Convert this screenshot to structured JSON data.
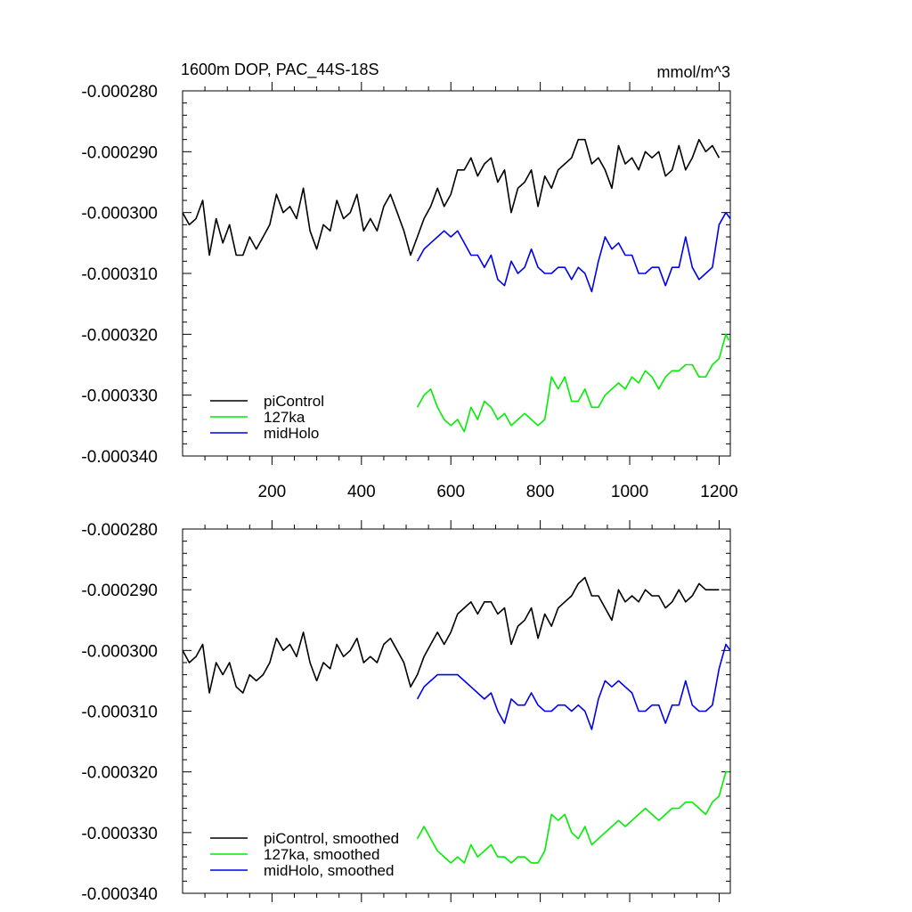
{
  "figure": {
    "title": "1600m DOP, PAC_44S-18S",
    "units": "mmol/m^3"
  },
  "chart_data": [
    {
      "type": "line",
      "panel": "top",
      "xlim": [
        0,
        1225
      ],
      "ylim": [
        -0.00034,
        -0.00028
      ],
      "x_ticks": [
        200,
        400,
        600,
        800,
        1000,
        1200
      ],
      "x_tick_labels": [
        "200",
        "400",
        "600",
        "800",
        "1000",
        "1200"
      ],
      "y_ticks": [
        -0.00028,
        -0.00029,
        -0.0003,
        -0.00031,
        -0.00032,
        -0.00033,
        -0.00034
      ],
      "y_tick_labels": [
        "-0.000280",
        "-0.000290",
        "-0.000300",
        "-0.000310",
        "-0.000320",
        "-0.000330",
        "-0.000340"
      ],
      "legend_position": "bottom-left",
      "series": [
        {
          "name": "piControl",
          "color": "#000000",
          "x": [
            0,
            15,
            30,
            45,
            60,
            75,
            90,
            105,
            120,
            135,
            150,
            165,
            180,
            195,
            210,
            225,
            240,
            255,
            270,
            285,
            300,
            315,
            330,
            345,
            360,
            375,
            390,
            405,
            420,
            435,
            450,
            465,
            480,
            495,
            510,
            525,
            540,
            555,
            570,
            585,
            600,
            615,
            630,
            645,
            660,
            675,
            690,
            705,
            720,
            735,
            750,
            765,
            780,
            795,
            810,
            825,
            840,
            855,
            870,
            885,
            900,
            915,
            930,
            945,
            960,
            975,
            990,
            1005,
            1020,
            1035,
            1050,
            1065,
            1080,
            1095,
            1110,
            1125,
            1140,
            1155,
            1170,
            1185,
            1200
          ],
          "y": [
            -0.0003,
            -0.000302,
            -0.000301,
            -0.000298,
            -0.000307,
            -0.000301,
            -0.000305,
            -0.000302,
            -0.000307,
            -0.000307,
            -0.000304,
            -0.000306,
            -0.000304,
            -0.000302,
            -0.000297,
            -0.0003,
            -0.000299,
            -0.000301,
            -0.000296,
            -0.000303,
            -0.000306,
            -0.000302,
            -0.000303,
            -0.000298,
            -0.000301,
            -0.0003,
            -0.000297,
            -0.000303,
            -0.000301,
            -0.000303,
            -0.000299,
            -0.000297,
            -0.0003,
            -0.000303,
            -0.000307,
            -0.000304,
            -0.000301,
            -0.000299,
            -0.000296,
            -0.000299,
            -0.000297,
            -0.000293,
            -0.000293,
            -0.000291,
            -0.000294,
            -0.000292,
            -0.000291,
            -0.000295,
            -0.000293,
            -0.0003,
            -0.000296,
            -0.000295,
            -0.000293,
            -0.000299,
            -0.000294,
            -0.000296,
            -0.000293,
            -0.000292,
            -0.000291,
            -0.000288,
            -0.000288,
            -0.000292,
            -0.000291,
            -0.000293,
            -0.000296,
            -0.000289,
            -0.000292,
            -0.000291,
            -0.000293,
            -0.00029,
            -0.000291,
            -0.00029,
            -0.000294,
            -0.000293,
            -0.000289,
            -0.000293,
            -0.000291,
            -0.000288,
            -0.00029,
            -0.000289,
            -0.000291
          ]
        },
        {
          "name": "127ka",
          "color": "#00ee00",
          "x": [
            525,
            540,
            555,
            570,
            585,
            600,
            615,
            630,
            645,
            660,
            675,
            690,
            705,
            720,
            735,
            750,
            765,
            780,
            795,
            810,
            825,
            840,
            855,
            870,
            885,
            900,
            915,
            930,
            945,
            960,
            975,
            990,
            1005,
            1020,
            1035,
            1050,
            1065,
            1080,
            1095,
            1110,
            1125,
            1140,
            1155,
            1170,
            1185,
            1200,
            1215,
            1222
          ],
          "y": [
            -0.000332,
            -0.00033,
            -0.000329,
            -0.000332,
            -0.000334,
            -0.000335,
            -0.000334,
            -0.000336,
            -0.000332,
            -0.000334,
            -0.000331,
            -0.000332,
            -0.000334,
            -0.000333,
            -0.000335,
            -0.000334,
            -0.000333,
            -0.000334,
            -0.000335,
            -0.000334,
            -0.000327,
            -0.000329,
            -0.000327,
            -0.000331,
            -0.000331,
            -0.000329,
            -0.000332,
            -0.000332,
            -0.00033,
            -0.000329,
            -0.000328,
            -0.000329,
            -0.000327,
            -0.000328,
            -0.000326,
            -0.000327,
            -0.000329,
            -0.000327,
            -0.000326,
            -0.000326,
            -0.000325,
            -0.000325,
            -0.000327,
            -0.000327,
            -0.000325,
            -0.000324,
            -0.00032,
            -0.000321
          ]
        },
        {
          "name": "midHolo",
          "color": "#0000ee",
          "x": [
            525,
            540,
            555,
            570,
            585,
            600,
            615,
            630,
            645,
            660,
            675,
            690,
            705,
            720,
            735,
            750,
            765,
            780,
            795,
            810,
            825,
            840,
            855,
            870,
            885,
            900,
            915,
            930,
            945,
            960,
            975,
            990,
            1005,
            1020,
            1035,
            1050,
            1065,
            1080,
            1095,
            1110,
            1125,
            1140,
            1155,
            1170,
            1185,
            1200,
            1215,
            1225
          ],
          "y": [
            -0.000308,
            -0.000306,
            -0.000305,
            -0.000304,
            -0.000303,
            -0.000304,
            -0.000303,
            -0.000305,
            -0.000307,
            -0.000307,
            -0.000309,
            -0.000307,
            -0.000311,
            -0.000312,
            -0.000308,
            -0.00031,
            -0.000309,
            -0.000306,
            -0.000309,
            -0.00031,
            -0.00031,
            -0.000309,
            -0.000309,
            -0.000311,
            -0.000309,
            -0.00031,
            -0.000313,
            -0.000308,
            -0.000304,
            -0.000306,
            -0.000305,
            -0.000307,
            -0.000307,
            -0.00031,
            -0.00031,
            -0.000309,
            -0.000309,
            -0.000312,
            -0.000309,
            -0.000309,
            -0.000304,
            -0.000309,
            -0.000311,
            -0.00031,
            -0.000309,
            -0.000302,
            -0.0003,
            -0.000301
          ]
        }
      ]
    },
    {
      "type": "line",
      "panel": "bottom",
      "xlim": [
        0,
        1225
      ],
      "ylim": [
        -0.00034,
        -0.00028
      ],
      "x_ticks": [
        200,
        400,
        600,
        800,
        1000,
        1200
      ],
      "y_ticks": [
        -0.00028,
        -0.00029,
        -0.0003,
        -0.00031,
        -0.00032,
        -0.00033,
        -0.00034
      ],
      "y_tick_labels": [
        "-0.000280",
        "-0.000290",
        "-0.000300",
        "-0.000310",
        "-0.000320",
        "-0.000330",
        "-0.000340"
      ],
      "legend_position": "bottom-left",
      "series": [
        {
          "name": "piControl, smoothed",
          "color": "#000000",
          "x": [
            0,
            15,
            30,
            45,
            60,
            75,
            90,
            105,
            120,
            135,
            150,
            165,
            180,
            195,
            210,
            225,
            240,
            255,
            270,
            285,
            300,
            315,
            330,
            345,
            360,
            375,
            390,
            405,
            420,
            435,
            450,
            465,
            480,
            495,
            510,
            525,
            540,
            555,
            570,
            585,
            600,
            615,
            630,
            645,
            660,
            675,
            690,
            705,
            720,
            735,
            750,
            765,
            780,
            795,
            810,
            825,
            840,
            855,
            870,
            885,
            900,
            915,
            930,
            945,
            960,
            975,
            990,
            1005,
            1020,
            1035,
            1050,
            1065,
            1080,
            1095,
            1110,
            1125,
            1140,
            1155,
            1170,
            1185,
            1200
          ],
          "y": [
            -0.0003,
            -0.000302,
            -0.000301,
            -0.000299,
            -0.000307,
            -0.000302,
            -0.000304,
            -0.000302,
            -0.000306,
            -0.000307,
            -0.000304,
            -0.000305,
            -0.000304,
            -0.000302,
            -0.000298,
            -0.0003,
            -0.000299,
            -0.000301,
            -0.000297,
            -0.000302,
            -0.000305,
            -0.000302,
            -0.000303,
            -0.000299,
            -0.000301,
            -0.0003,
            -0.000298,
            -0.000302,
            -0.000301,
            -0.000302,
            -0.000299,
            -0.000298,
            -0.0003,
            -0.000302,
            -0.000306,
            -0.000304,
            -0.000301,
            -0.000299,
            -0.000297,
            -0.000299,
            -0.000297,
            -0.000294,
            -0.000293,
            -0.000292,
            -0.000294,
            -0.000292,
            -0.000292,
            -0.000294,
            -0.000293,
            -0.000299,
            -0.000296,
            -0.000295,
            -0.000293,
            -0.000298,
            -0.000294,
            -0.000296,
            -0.000293,
            -0.000292,
            -0.000291,
            -0.000289,
            -0.000288,
            -0.000291,
            -0.000291,
            -0.000293,
            -0.000295,
            -0.00029,
            -0.000292,
            -0.000291,
            -0.000292,
            -0.00029,
            -0.000291,
            -0.000291,
            -0.000293,
            -0.000292,
            -0.00029,
            -0.000292,
            -0.000291,
            -0.000289,
            -0.00029,
            -0.00029,
            -0.00029
          ]
        },
        {
          "name": "127ka, smoothed",
          "color": "#00ee00",
          "x": [
            525,
            540,
            555,
            570,
            585,
            600,
            615,
            630,
            645,
            660,
            675,
            690,
            705,
            720,
            735,
            750,
            765,
            780,
            795,
            810,
            825,
            840,
            855,
            870,
            885,
            900,
            915,
            930,
            945,
            960,
            975,
            990,
            1005,
            1020,
            1035,
            1050,
            1065,
            1080,
            1095,
            1110,
            1125,
            1140,
            1155,
            1170,
            1185,
            1200,
            1215,
            1222
          ],
          "y": [
            -0.000331,
            -0.000329,
            -0.000331,
            -0.000333,
            -0.000334,
            -0.000335,
            -0.000334,
            -0.000335,
            -0.000332,
            -0.000334,
            -0.000333,
            -0.000332,
            -0.000334,
            -0.000334,
            -0.000335,
            -0.000334,
            -0.000334,
            -0.000335,
            -0.000335,
            -0.000333,
            -0.000327,
            -0.000328,
            -0.000327,
            -0.00033,
            -0.000331,
            -0.000329,
            -0.000332,
            -0.000331,
            -0.00033,
            -0.000329,
            -0.000328,
            -0.000329,
            -0.000328,
            -0.000327,
            -0.000326,
            -0.000327,
            -0.000328,
            -0.000327,
            -0.000326,
            -0.000326,
            -0.000325,
            -0.000325,
            -0.000326,
            -0.000327,
            -0.000325,
            -0.000324,
            -0.00032,
            -0.00032
          ]
        },
        {
          "name": "midHolo, smoothed",
          "color": "#0000ee",
          "x": [
            525,
            540,
            555,
            570,
            585,
            600,
            615,
            630,
            645,
            660,
            675,
            690,
            705,
            720,
            735,
            750,
            765,
            780,
            795,
            810,
            825,
            840,
            855,
            870,
            885,
            900,
            915,
            930,
            945,
            960,
            975,
            990,
            1005,
            1020,
            1035,
            1050,
            1065,
            1080,
            1095,
            1110,
            1125,
            1140,
            1155,
            1170,
            1185,
            1200,
            1215,
            1225
          ],
          "y": [
            -0.000308,
            -0.000306,
            -0.000305,
            -0.000304,
            -0.000304,
            -0.000304,
            -0.000304,
            -0.000305,
            -0.000306,
            -0.000307,
            -0.000308,
            -0.000307,
            -0.00031,
            -0.000312,
            -0.000308,
            -0.000309,
            -0.000309,
            -0.000307,
            -0.000309,
            -0.00031,
            -0.00031,
            -0.000309,
            -0.000309,
            -0.00031,
            -0.000309,
            -0.00031,
            -0.000313,
            -0.000308,
            -0.000305,
            -0.000306,
            -0.000305,
            -0.000306,
            -0.000307,
            -0.00031,
            -0.00031,
            -0.000309,
            -0.000309,
            -0.000312,
            -0.000309,
            -0.000309,
            -0.000305,
            -0.000309,
            -0.00031,
            -0.00031,
            -0.000309,
            -0.000303,
            -0.000299,
            -0.0003
          ]
        }
      ]
    }
  ]
}
